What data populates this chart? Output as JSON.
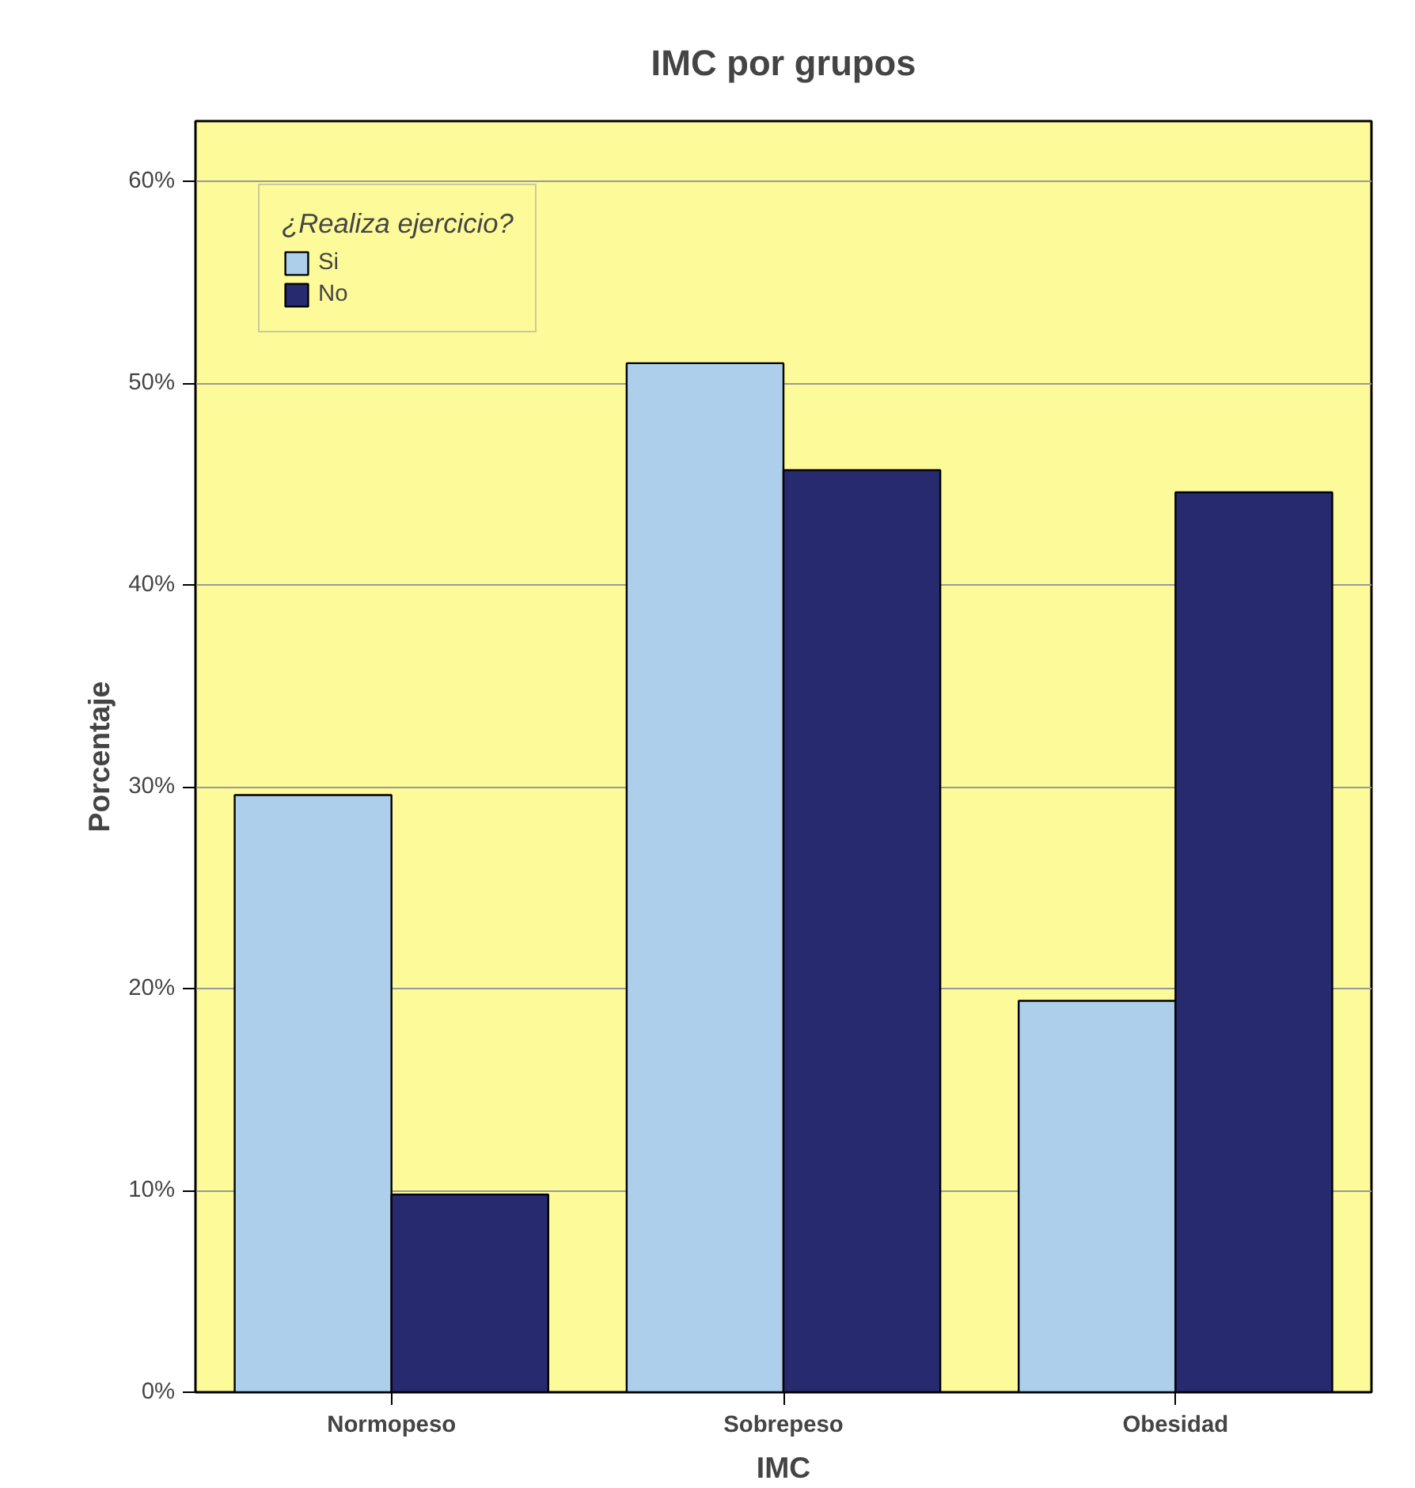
{
  "chart_data": {
    "type": "bar",
    "title": "IMC por grupos",
    "xlabel": "IMC",
    "ylabel": "Porcentaje",
    "legend_title": "¿Realiza ejercicio?",
    "categories": [
      "Normopeso",
      "Sobrepeso",
      "Obesidad"
    ],
    "series": [
      {
        "name": "Si",
        "color": "#aecfec",
        "values": [
          29.6,
          51.0,
          19.4
        ]
      },
      {
        "name": "No",
        "color": "#282a70",
        "values": [
          9.8,
          45.7,
          44.6
        ]
      }
    ],
    "ylim": [
      0,
      63
    ],
    "yticks": [
      {
        "value": 0,
        "label": "0%"
      },
      {
        "value": 10,
        "label": "10%"
      },
      {
        "value": 20,
        "label": "20%"
      },
      {
        "value": 30,
        "label": "30%"
      },
      {
        "value": 40,
        "label": "40%"
      },
      {
        "value": 50,
        "label": "50%"
      },
      {
        "value": 60,
        "label": "60%"
      }
    ],
    "grid": "y",
    "legend": "top left"
  }
}
